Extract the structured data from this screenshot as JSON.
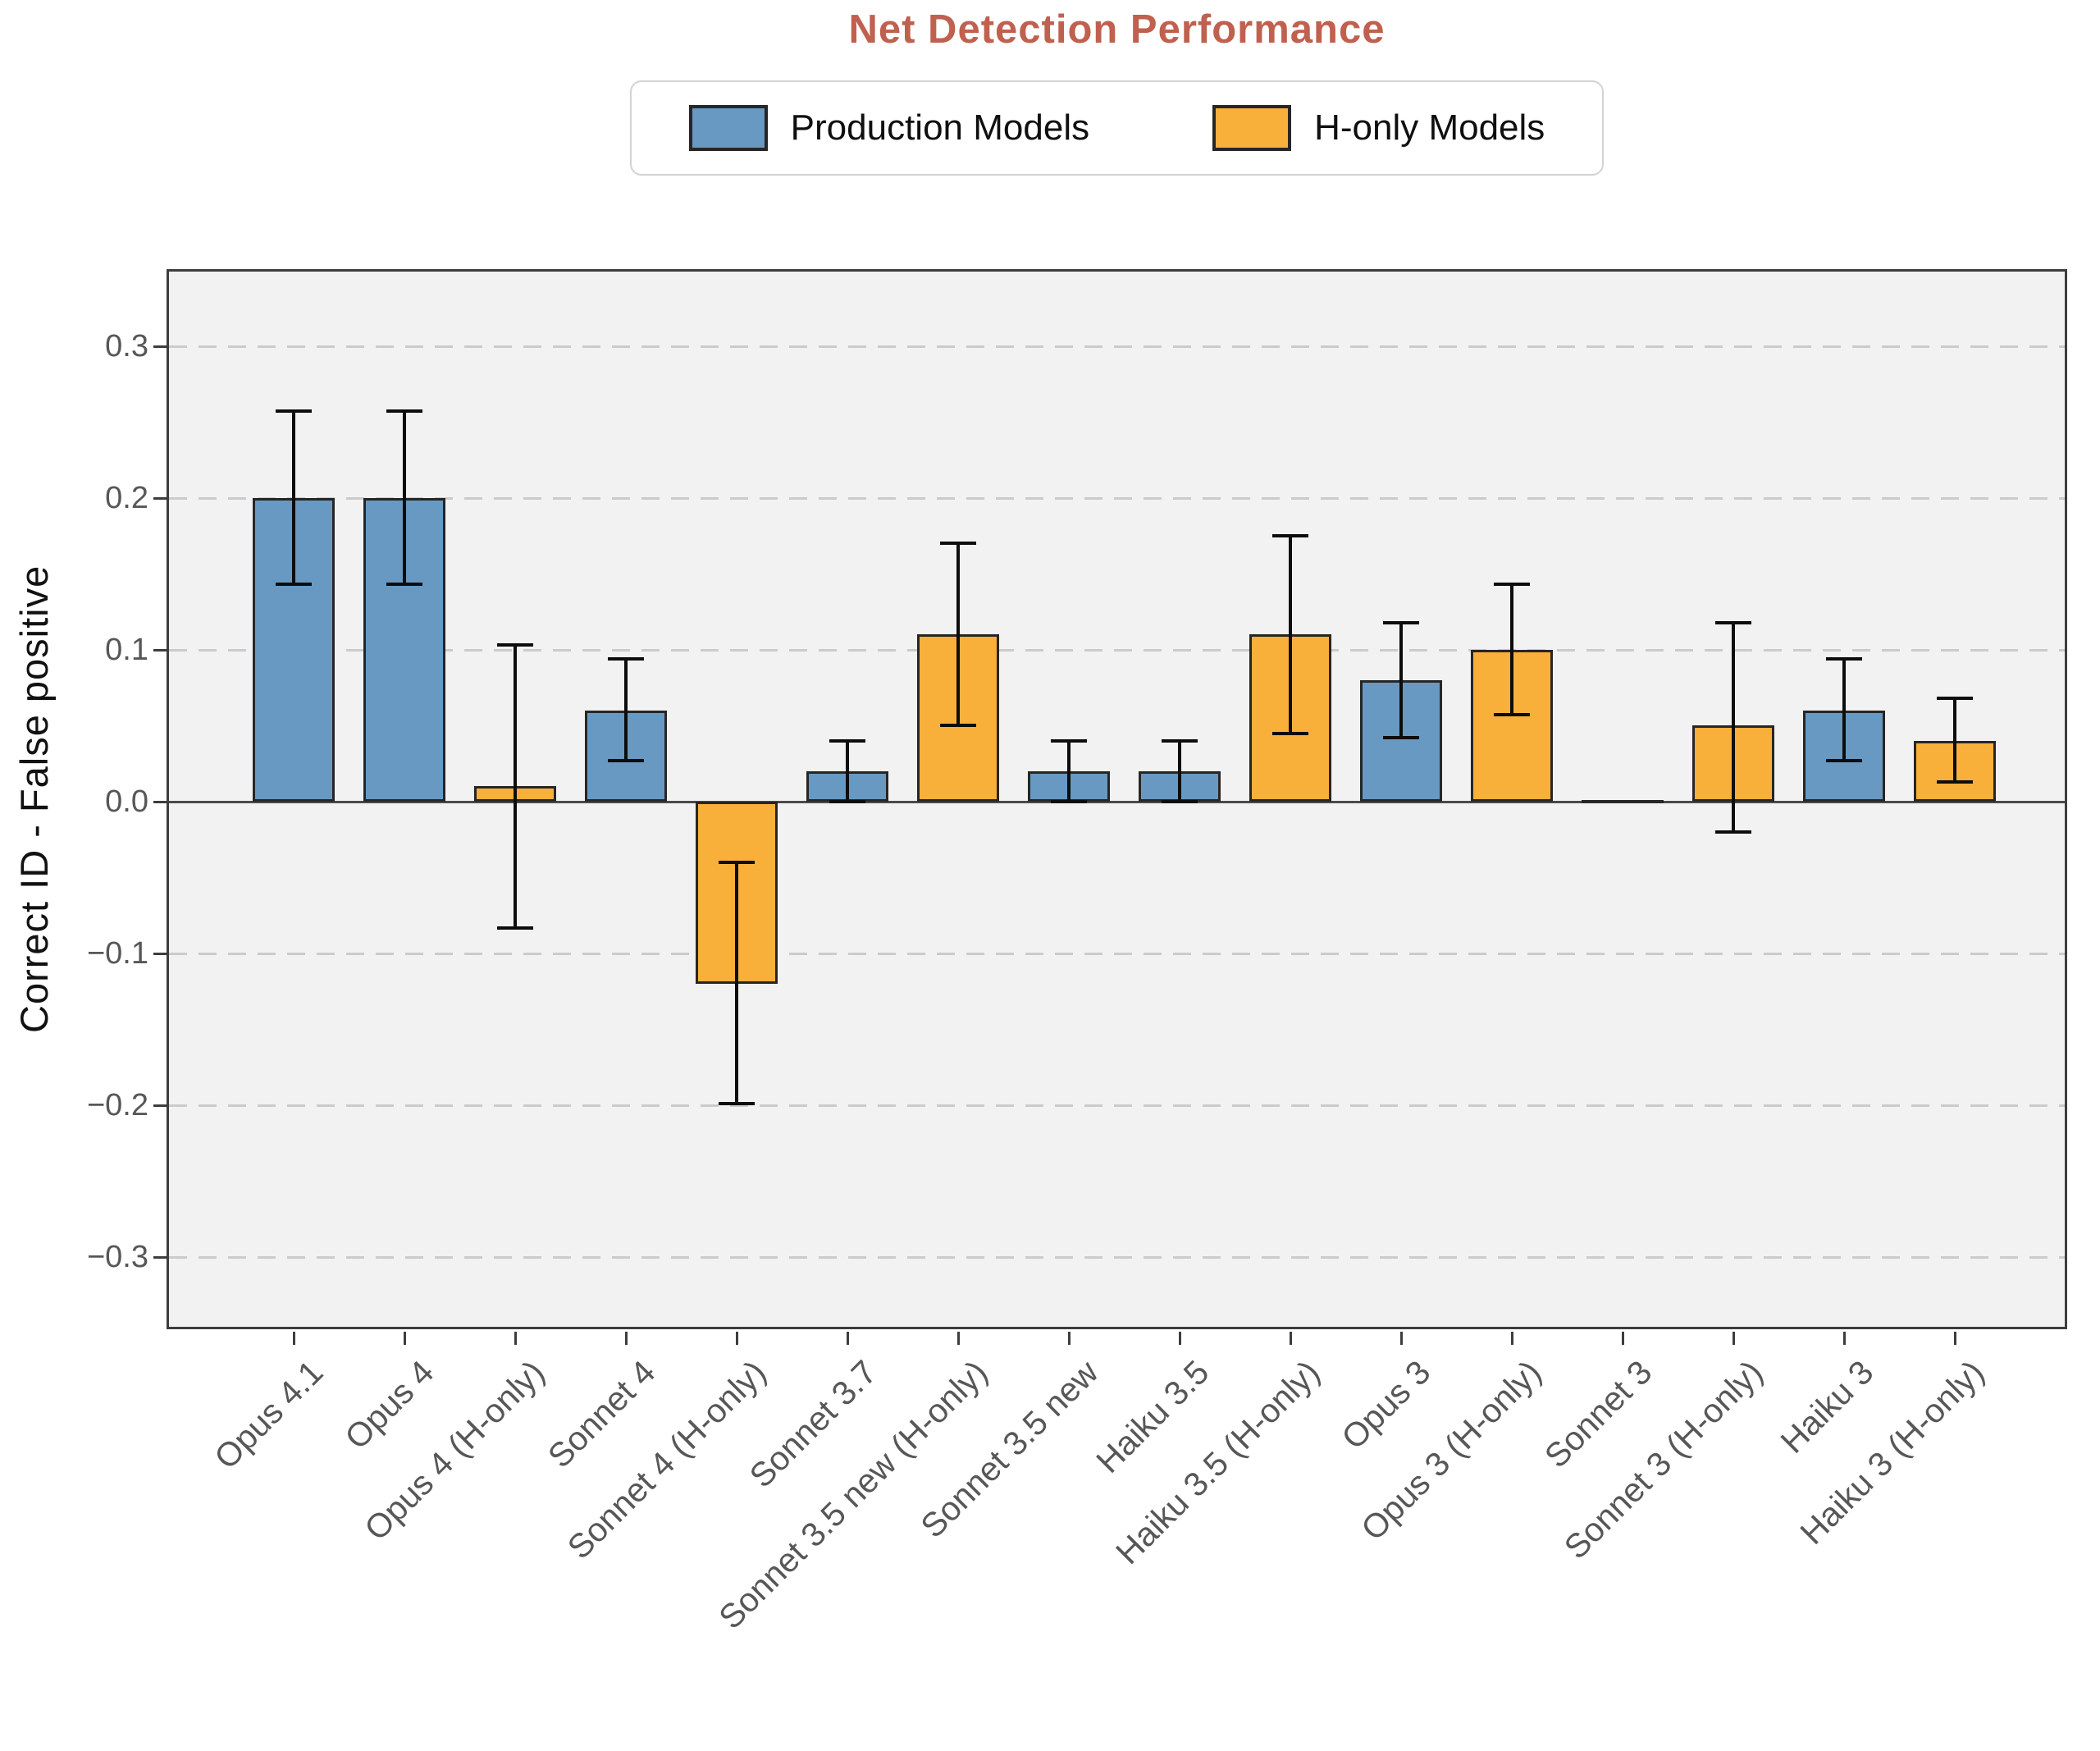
{
  "title": "Net Detection Performance",
  "ylabel": "Correct ID - False positive",
  "legend": [
    {
      "label": "Production Models",
      "color": "#6899c2"
    },
    {
      "label": "H-only Models",
      "color": "#f9b03a"
    }
  ],
  "colors": {
    "title": "#c0604e",
    "plot_background": "#f2f2f2",
    "figure_background": "#ffffff",
    "gridline": "#cbcbcb",
    "axis_spine": "#3d3d3d",
    "bar_edge": "#262626",
    "error_bar": "#0d0d0d",
    "tick_label": "#575757"
  },
  "chart_data": {
    "type": "bar",
    "title": "Net Detection Performance",
    "xlabel": "",
    "ylabel": "Correct ID - False positive",
    "ylim": [
      -0.349,
      0.349
    ],
    "yticks": [
      0.3,
      0.2,
      0.1,
      0.0,
      -0.1,
      -0.2,
      -0.3
    ],
    "grid": "horizontal dashed, solid line at 0",
    "legend_position": "top center",
    "categories": [
      "Opus 4.1",
      "Opus 4",
      "Opus 4 (H-only)",
      "Sonnet 4",
      "Sonnet 4 (H-only)",
      "Sonnet 3.7",
      "Sonnet 3.5 new (H-only)",
      "Sonnet 3.5 new",
      "Haiku 3.5",
      "Haiku 3.5 (H-only)",
      "Opus 3",
      "Opus 3 (H-only)",
      "Sonnet 3",
      "Sonnet 3 (H-only)",
      "Haiku 3",
      "Haiku 3 (H-only)"
    ],
    "bars": [
      {
        "label": "Opus 4.1",
        "series": "Production Models",
        "value": 0.2,
        "err_low": 0.143,
        "err_high": 0.257
      },
      {
        "label": "Opus 4",
        "series": "Production Models",
        "value": 0.2,
        "err_low": 0.143,
        "err_high": 0.257
      },
      {
        "label": "Opus 4 (H-only)",
        "series": "H-only Models",
        "value": 0.01,
        "err_low": -0.083,
        "err_high": 0.103
      },
      {
        "label": "Sonnet 4",
        "series": "Production Models",
        "value": 0.06,
        "err_low": 0.027,
        "err_high": 0.094
      },
      {
        "label": "Sonnet 4 (H-only)",
        "series": "H-only Models",
        "value": -0.12,
        "err_low": -0.199,
        "err_high": -0.04
      },
      {
        "label": "Sonnet 3.7",
        "series": "Production Models",
        "value": 0.02,
        "err_low": 0.0,
        "err_high": 0.04
      },
      {
        "label": "Sonnet 3.5 new (H-only)",
        "series": "H-only Models",
        "value": 0.11,
        "err_low": 0.05,
        "err_high": 0.17
      },
      {
        "label": "Sonnet 3.5 new",
        "series": "Production Models",
        "value": 0.02,
        "err_low": 0.0,
        "err_high": 0.04
      },
      {
        "label": "Haiku 3.5",
        "series": "Production Models",
        "value": 0.02,
        "err_low": 0.0,
        "err_high": 0.04
      },
      {
        "label": "Haiku 3.5 (H-only)",
        "series": "H-only Models",
        "value": 0.11,
        "err_low": 0.045,
        "err_high": 0.175
      },
      {
        "label": "Opus 3",
        "series": "Production Models",
        "value": 0.08,
        "err_low": 0.042,
        "err_high": 0.118
      },
      {
        "label": "Opus 3 (H-only)",
        "series": "H-only Models",
        "value": 0.1,
        "err_low": 0.057,
        "err_high": 0.143
      },
      {
        "label": "Sonnet 3",
        "series": "Production Models",
        "value": 0.0,
        "err_low": null,
        "err_high": null
      },
      {
        "label": "Sonnet 3 (H-only)",
        "series": "H-only Models",
        "value": 0.05,
        "err_low": -0.02,
        "err_high": 0.118
      },
      {
        "label": "Haiku 3",
        "series": "Production Models",
        "value": 0.06,
        "err_low": 0.027,
        "err_high": 0.094
      },
      {
        "label": "Haiku 3 (H-only)",
        "series": "H-only Models",
        "value": 0.04,
        "err_low": 0.013,
        "err_high": 0.068
      }
    ]
  }
}
